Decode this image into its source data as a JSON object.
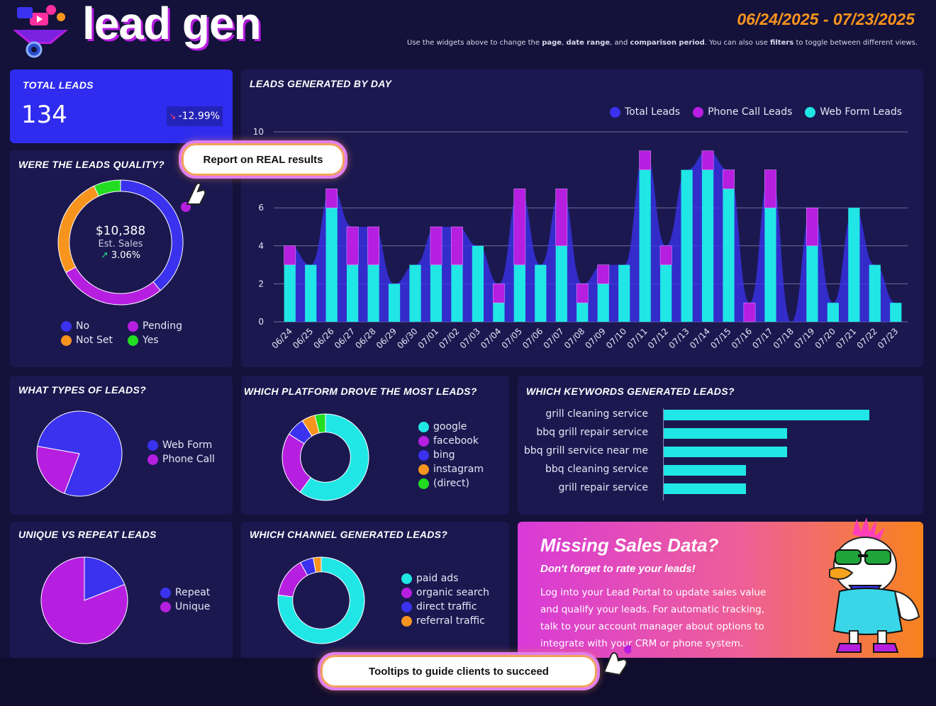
{
  "header": {
    "title": "lead gen",
    "date_range": "06/24/2025 - 07/23/2025",
    "subtitle_parts": [
      "Use the widgets above to change the ",
      "page",
      ", ",
      "date range",
      ", and ",
      "comparison period",
      ". You can also use ",
      "filters",
      " to toggle between different views."
    ]
  },
  "total_leads": {
    "title": "TOTAL LEADS",
    "value": "134",
    "change": "-12.99%"
  },
  "quality": {
    "title": "WERE THE LEADS QUALITY?",
    "center_value": "$10,388",
    "center_label": "Est. Sales",
    "center_change": "3.06%",
    "legend": [
      {
        "label": "No",
        "color": "#3a32ee"
      },
      {
        "label": "Pending",
        "color": "#b61ee0"
      },
      {
        "label": "Not Set",
        "color": "#f7941d"
      },
      {
        "label": "Yes",
        "color": "#22dd22"
      }
    ]
  },
  "tooltips": {
    "report": "Report on REAL results",
    "guide": "Tooltips to guide clients to succeed"
  },
  "daily_chart": {
    "title": "LEADS GENERATED BY DAY",
    "legend": [
      {
        "label": "Total Leads",
        "color": "#3a32ee"
      },
      {
        "label": "Phone Call Leads",
        "color": "#b61ee0"
      },
      {
        "label": "Web Form Leads",
        "color": "#21e6e6"
      }
    ]
  },
  "types": {
    "title": "WHAT TYPES OF LEADS?",
    "legend": [
      {
        "label": "Web Form",
        "color": "#3a32ee"
      },
      {
        "label": "Phone Call",
        "color": "#b61ee0"
      }
    ]
  },
  "platform": {
    "title": "WHICH PLATFORM DROVE THE MOST LEADS?",
    "legend": [
      {
        "label": "google",
        "color": "#21e6e6"
      },
      {
        "label": "facebook",
        "color": "#b61ee0"
      },
      {
        "label": "bing",
        "color": "#3a32ee"
      },
      {
        "label": "instagram",
        "color": "#f7941d"
      },
      {
        "label": "(direct)",
        "color": "#22dd22"
      }
    ]
  },
  "keywords": {
    "title": "WHICH KEYWORDS GENERATED LEADS?"
  },
  "unique": {
    "title": "UNIQUE VS REPEAT LEADS",
    "legend": [
      {
        "label": "Repeat",
        "color": "#3a32ee"
      },
      {
        "label": "Unique",
        "color": "#b61ee0"
      }
    ]
  },
  "channel": {
    "title": "WHICH CHANNEL GENERATED LEADS?",
    "legend": [
      {
        "label": "paid ads",
        "color": "#21e6e6"
      },
      {
        "label": "organic search",
        "color": "#b61ee0"
      },
      {
        "label": "direct traffic",
        "color": "#3a32ee"
      },
      {
        "label": "referral traffic",
        "color": "#f7941d"
      }
    ]
  },
  "promo": {
    "title": "Missing Sales Data?",
    "subtitle": "Don't forget to rate your leads!",
    "body": "Log into your Lead Portal to update sales value and qualify your leads. For automatic tracking, talk to your account manager about options to integrate with your CRM or phone system."
  },
  "chart_data": [
    {
      "type": "bar",
      "title": "LEADS GENERATED BY DAY",
      "categories": [
        "06/24",
        "06/25",
        "06/26",
        "06/27",
        "06/28",
        "06/29",
        "06/30",
        "07/01",
        "07/02",
        "07/03",
        "07/04",
        "07/05",
        "07/06",
        "07/07",
        "07/08",
        "07/09",
        "07/10",
        "07/11",
        "07/12",
        "07/13",
        "07/14",
        "07/15",
        "07/16",
        "07/17",
        "07/18",
        "07/19",
        "07/20",
        "07/21",
        "07/22",
        "07/23"
      ],
      "ylim": [
        0,
        10
      ],
      "yticks": [
        0,
        2,
        4,
        6,
        10
      ],
      "series": [
        {
          "name": "Web Form Leads",
          "values": [
            3,
            3,
            6,
            3,
            3,
            2,
            3,
            3,
            3,
            4,
            1,
            3,
            3,
            4,
            1,
            2,
            3,
            8,
            3,
            8,
            8,
            7,
            0,
            6,
            0,
            4,
            1,
            6,
            3,
            1
          ]
        },
        {
          "name": "Phone Call Leads",
          "values": [
            1,
            0,
            1,
            2,
            2,
            0,
            0,
            2,
            2,
            0,
            1,
            4,
            0,
            3,
            1,
            1,
            0,
            1,
            1,
            0,
            1,
            1,
            1,
            2,
            0,
            2,
            0,
            0,
            0,
            0
          ]
        },
        {
          "name": "Total Leads",
          "values": [
            4,
            3,
            7,
            5,
            5,
            2,
            3,
            5,
            5,
            4,
            2,
            7,
            3,
            7,
            2,
            3,
            3,
            9,
            4,
            8,
            9,
            8,
            1,
            8,
            0,
            6,
            1,
            6,
            3,
            1
          ]
        }
      ]
    },
    {
      "type": "pie",
      "title": "WERE THE LEADS QUALITY?",
      "labels": [
        "No",
        "Pending",
        "Not Set",
        "Yes"
      ],
      "values": [
        39,
        28,
        26,
        7
      ]
    },
    {
      "type": "pie",
      "title": "WHAT TYPES OF LEADS?",
      "labels": [
        "Web Form",
        "Phone Call"
      ],
      "values": [
        78,
        22
      ]
    },
    {
      "type": "pie",
      "title": "WHICH PLATFORM DROVE THE MOST LEADS?",
      "labels": [
        "google",
        "facebook",
        "bing",
        "instagram",
        "(direct)"
      ],
      "values": [
        60,
        24,
        7,
        5,
        4
      ]
    },
    {
      "type": "bar",
      "title": "WHICH KEYWORDS GENERATED LEADS?",
      "categories": [
        "grill cleaning service",
        "bbq grill repair service",
        "bbq grill service near me",
        "bbq cleaning service",
        "grill repair service"
      ],
      "values": [
        5,
        3,
        3,
        2,
        2
      ],
      "xlim": [
        0,
        5
      ]
    },
    {
      "type": "pie",
      "title": "UNIQUE VS REPEAT LEADS",
      "labels": [
        "Repeat",
        "Unique"
      ],
      "values": [
        19,
        81
      ]
    },
    {
      "type": "pie",
      "title": "WHICH CHANNEL GENERATED LEADS?",
      "labels": [
        "paid ads",
        "organic search",
        "direct traffic",
        "referral traffic"
      ],
      "values": [
        77,
        15,
        5,
        3
      ]
    }
  ]
}
